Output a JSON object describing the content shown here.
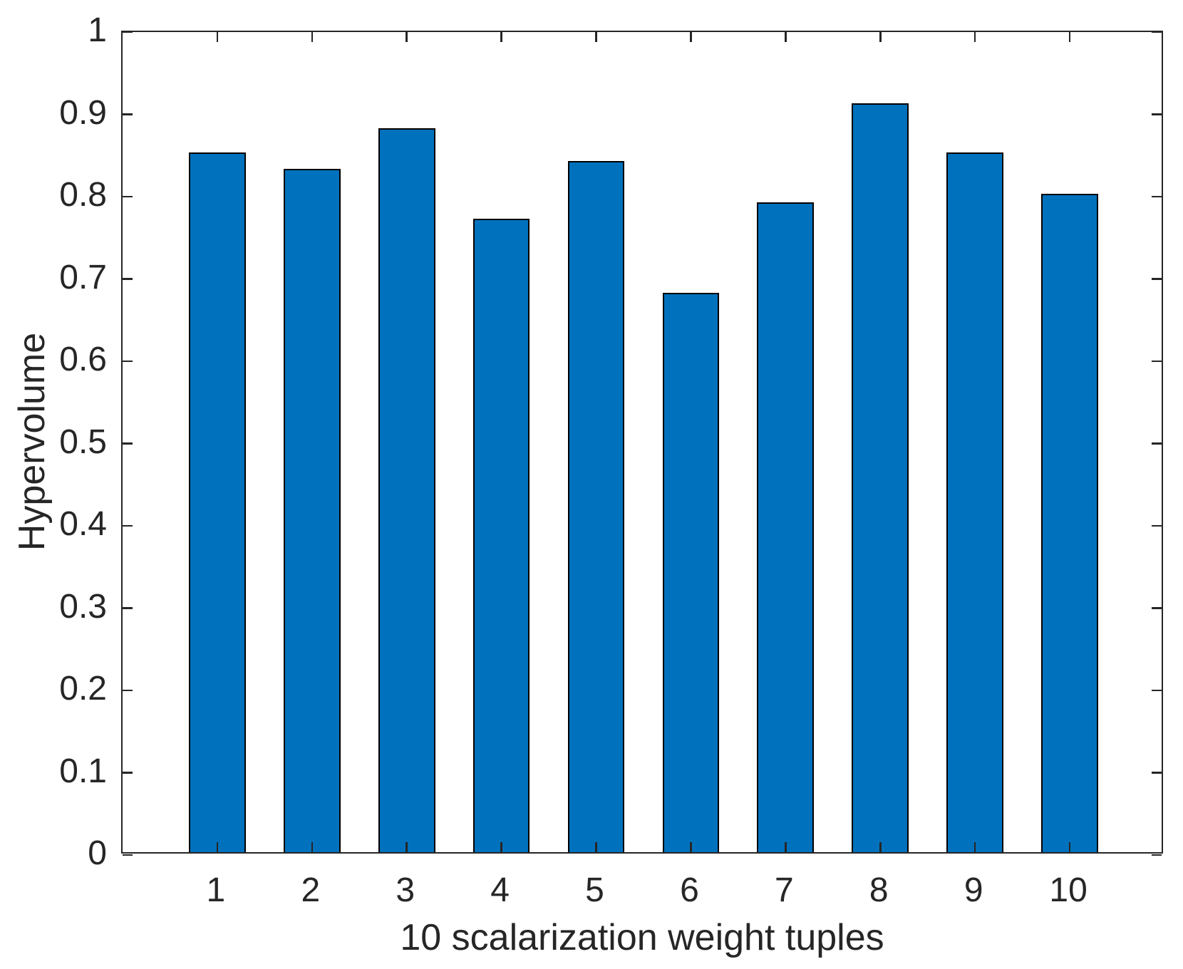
{
  "chart_data": {
    "type": "bar",
    "categories": [
      "1",
      "2",
      "3",
      "4",
      "5",
      "6",
      "7",
      "8",
      "9",
      "10"
    ],
    "values": [
      0.85,
      0.83,
      0.88,
      0.77,
      0.84,
      0.68,
      0.79,
      0.91,
      0.85,
      0.8
    ],
    "xlabel": "10 scalarization weight tuples",
    "ylabel": "Hypervolume",
    "ylim": [
      0,
      1
    ],
    "yticks": [
      0,
      0.1,
      0.2,
      0.3,
      0.4,
      0.5,
      0.6,
      0.7,
      0.8,
      0.9,
      1
    ],
    "ytick_labels": [
      "0",
      "0.1",
      "0.2",
      "0.3",
      "0.4",
      "0.5",
      "0.6",
      "0.7",
      "0.8",
      "0.9",
      "1"
    ],
    "grid": false,
    "legend": "none",
    "box": true,
    "tick_direction": "in",
    "bar_width_fraction": 0.6,
    "colors": {
      "bar_fill": "#0072BD",
      "bar_edge": "#000000",
      "axis": "#262626",
      "text": "#262626",
      "background": "#FFFFFF"
    }
  }
}
